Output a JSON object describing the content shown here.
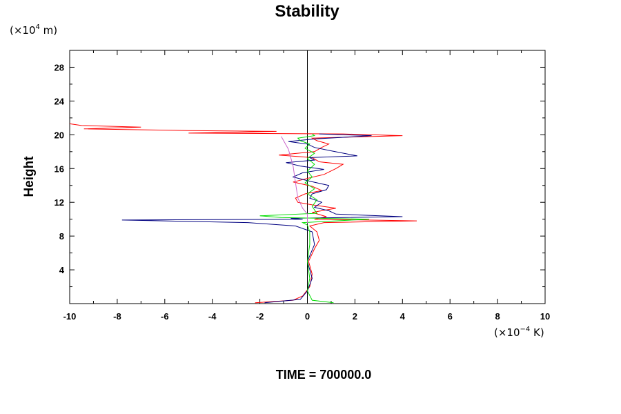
{
  "chart_data": {
    "type": "line",
    "title": "Stability",
    "ylabel": "Height",
    "y_unit": {
      "base": "(×10",
      "exp": "4",
      "rest": " m)"
    },
    "x_unit": {
      "base": "(×10",
      "exp": "−4",
      "rest": " K)"
    },
    "xlim": [
      -10,
      10
    ],
    "ylim": [
      0,
      30
    ],
    "x_ticks": [
      "-10",
      "-8",
      "-6",
      "-4",
      "-2",
      "0",
      "2",
      "4",
      "6",
      "8",
      "10"
    ],
    "y_ticks": [
      "4",
      "8",
      "12",
      "16",
      "20",
      "24",
      "28"
    ],
    "x_tick_values": [
      -10,
      -8,
      -6,
      -4,
      -2,
      0,
      2,
      4,
      6,
      8,
      10
    ],
    "y_tick_values": [
      4,
      8,
      12,
      16,
      20,
      24,
      28
    ],
    "grid": false,
    "series": [
      {
        "color": "#ff0000",
        "points": [
          [
            -2.2,
            0.1
          ],
          [
            -0.6,
            0.4
          ],
          [
            -0.2,
            0.9
          ],
          [
            0.1,
            2.0
          ],
          [
            0.2,
            3.5
          ],
          [
            0.05,
            5.0
          ],
          [
            0.3,
            6.5
          ],
          [
            0.5,
            7.5
          ],
          [
            0.4,
            8.5
          ],
          [
            0.1,
            9.2
          ],
          [
            0.7,
            9.6
          ],
          [
            4.6,
            9.8
          ],
          [
            0.3,
            10.0
          ],
          [
            0.8,
            10.3
          ],
          [
            0.2,
            10.8
          ],
          [
            1.2,
            11.3
          ],
          [
            0.2,
            11.7
          ],
          [
            -0.4,
            12.0
          ],
          [
            -0.5,
            12.5
          ],
          [
            -0.1,
            13.0
          ],
          [
            0.6,
            13.4
          ],
          [
            0.2,
            13.9
          ],
          [
            -0.6,
            14.4
          ],
          [
            0.1,
            14.9
          ],
          [
            0.7,
            15.3
          ],
          [
            1.2,
            16.0
          ],
          [
            1.5,
            16.5
          ],
          [
            0.5,
            16.8
          ],
          [
            0.2,
            17.3
          ],
          [
            -1.2,
            17.6
          ],
          [
            0.3,
            18.0
          ],
          [
            0.6,
            18.5
          ],
          [
            0.9,
            18.9
          ],
          [
            0.4,
            19.3
          ],
          [
            0.2,
            19.6
          ],
          [
            4.0,
            19.9
          ],
          [
            1.5,
            20.1
          ],
          [
            -5.0,
            20.2
          ],
          [
            -1.3,
            20.4
          ],
          [
            -5.0,
            20.5
          ],
          [
            -9.4,
            20.7
          ],
          [
            -7.0,
            20.9
          ],
          [
            -9.5,
            21.1
          ],
          [
            -10.0,
            21.3
          ]
        ]
      },
      {
        "color": "#000080",
        "points": [
          [
            -1.8,
            0.1
          ],
          [
            -0.3,
            0.5
          ],
          [
            0.0,
            1.5
          ],
          [
            0.2,
            3.0
          ],
          [
            0.0,
            5.0
          ],
          [
            0.3,
            7.0
          ],
          [
            0.2,
            8.5
          ],
          [
            -0.5,
            9.2
          ],
          [
            -2.5,
            9.6
          ],
          [
            -7.8,
            9.9
          ],
          [
            -0.2,
            10.0
          ],
          [
            -0.7,
            10.1
          ],
          [
            4.0,
            10.3
          ],
          [
            1.2,
            10.6
          ],
          [
            0.9,
            11.0
          ],
          [
            0.3,
            11.4
          ],
          [
            0.6,
            12.0
          ],
          [
            0.1,
            12.5
          ],
          [
            0.2,
            13.0
          ],
          [
            0.8,
            13.5
          ],
          [
            0.9,
            14.0
          ],
          [
            0.1,
            14.5
          ],
          [
            -0.6,
            15.0
          ],
          [
            -0.2,
            15.5
          ],
          [
            0.7,
            15.9
          ],
          [
            -0.3,
            16.3
          ],
          [
            -0.9,
            16.7
          ],
          [
            0.3,
            17.0
          ],
          [
            0.1,
            17.3
          ],
          [
            2.1,
            17.5
          ],
          [
            1.0,
            18.1
          ],
          [
            0.3,
            18.5
          ],
          [
            0.0,
            18.9
          ],
          [
            -0.8,
            19.2
          ],
          [
            0.3,
            19.5
          ],
          [
            2.7,
            19.9
          ],
          [
            0.5,
            20.1
          ]
        ]
      },
      {
        "color": "#00dd00",
        "points": [
          [
            1.1,
            0.1
          ],
          [
            0.2,
            0.4
          ],
          [
            0.0,
            1.5
          ],
          [
            0.1,
            3.0
          ],
          [
            0.0,
            5.0
          ],
          [
            0.1,
            7.0
          ],
          [
            0.1,
            8.5
          ],
          [
            0.0,
            9.3
          ],
          [
            -0.2,
            9.6
          ],
          [
            1.2,
            9.8
          ],
          [
            2.6,
            10.0
          ],
          [
            -1.1,
            10.2
          ],
          [
            -2.0,
            10.4
          ],
          [
            0.4,
            10.7
          ],
          [
            0.2,
            11.5
          ],
          [
            0.4,
            12.3
          ],
          [
            0.0,
            13.0
          ],
          [
            0.3,
            13.6
          ],
          [
            -0.1,
            14.3
          ],
          [
            0.2,
            15.0
          ],
          [
            0.0,
            15.7
          ],
          [
            0.3,
            16.5
          ],
          [
            0.0,
            17.2
          ],
          [
            0.3,
            17.8
          ],
          [
            -0.1,
            18.4
          ],
          [
            0.1,
            18.9
          ],
          [
            -0.3,
            19.3
          ],
          [
            -0.4,
            19.6
          ],
          [
            0.3,
            19.9
          ],
          [
            0.2,
            20.1
          ]
        ]
      },
      {
        "color": "#cc66cc",
        "points": [
          [
            -1.1,
            19.8
          ],
          [
            -0.8,
            18.3
          ],
          [
            -0.6,
            16.3
          ],
          [
            -0.5,
            14.3
          ],
          [
            -0.4,
            12.5
          ],
          [
            -0.2,
            11.3
          ],
          [
            0.0,
            10.6
          ],
          [
            0.0,
            9.5
          ]
        ]
      }
    ]
  },
  "time_label": "TIME = 700000.0"
}
